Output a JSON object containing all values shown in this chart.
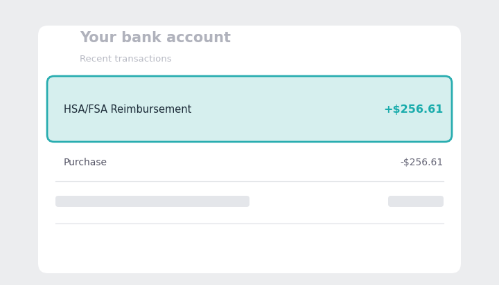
{
  "fig_w": 7.2,
  "fig_h": 4.12,
  "dpi": 100,
  "background_color": "#ecedef",
  "card_bg": "#ffffff",
  "card_shadow_color": "#d8d9dc",
  "title": "Your bank account",
  "title_color": "#b0b2bc",
  "title_fontsize": 15,
  "subtitle": "Recent transactions",
  "subtitle_color": "#b8bac4",
  "subtitle_fontsize": 9.5,
  "highlight_row_bg": "#d6efee",
  "highlight_row_border": "#29adb0",
  "hsa_label": "HSA/FSA Reimbursement",
  "hsa_label_color": "#1c2b38",
  "hsa_label_fontsize": 10.5,
  "hsa_amount": "+$256.61",
  "hsa_amount_color": "#1aacac",
  "hsa_amount_fontsize": 11.5,
  "purchase_label": "Purchase",
  "purchase_label_color": "#555566",
  "purchase_label_fontsize": 10,
  "purchase_amount": "-$256.61",
  "purchase_amount_color": "#666677",
  "purchase_amount_fontsize": 10,
  "divider_color": "#e2e4e8",
  "placeholder_color": "#e4e6ea"
}
